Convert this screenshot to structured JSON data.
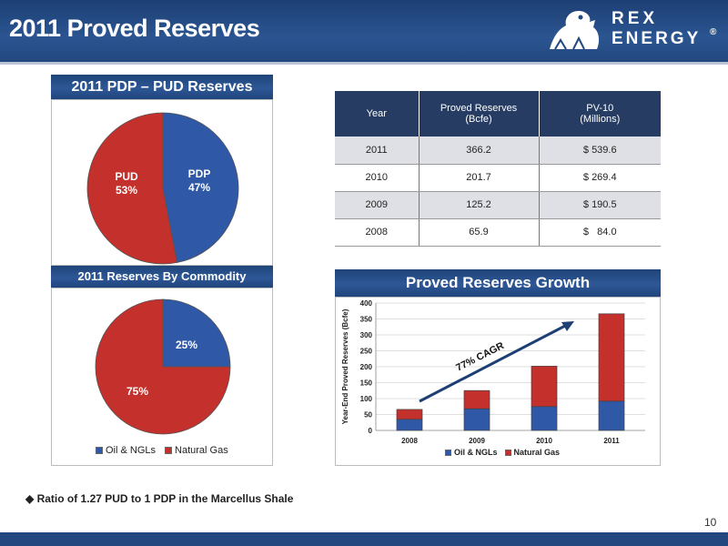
{
  "header": {
    "title": "2011 Proved Reserves"
  },
  "logo": {
    "line1": "REX",
    "line2": "ENERGY",
    "registered": "®"
  },
  "colors": {
    "blue": "#2f58a6",
    "red": "#c4302b",
    "header": "#23487f"
  },
  "pud_pdp_chart": {
    "title": "2011 PDP – PUD Reserves",
    "chart_data": {
      "type": "pie",
      "slices": [
        {
          "label": "PDP",
          "value": 47,
          "display": "47%",
          "color": "#2f58a6"
        },
        {
          "label": "PUD",
          "value": 53,
          "display": "53%",
          "color": "#c4302b"
        }
      ]
    }
  },
  "commodity_chart": {
    "title": "2011 Reserves By Commodity",
    "chart_data": {
      "type": "pie",
      "slices": [
        {
          "label": "Oil & NGLs",
          "value": 25,
          "display": "25%",
          "color": "#2f58a6"
        },
        {
          "label": "Natural Gas",
          "value": 75,
          "display": "75%",
          "color": "#c4302b"
        }
      ],
      "legend": [
        "Oil & NGLs",
        "Natural Gas"
      ]
    }
  },
  "reserves_table": {
    "headers": [
      "Year",
      "Proved Reserves",
      "(Bcfe)",
      "PV-10",
      "(Millions)"
    ],
    "rows": [
      {
        "year": "2011",
        "reserves": "366.2",
        "pv10": "$ 539.6"
      },
      {
        "year": "2010",
        "reserves": "201.7",
        "pv10": "$ 269.4"
      },
      {
        "year": "2009",
        "reserves": "125.2",
        "pv10": "$ 190.5"
      },
      {
        "year": "2008",
        "reserves": "65.9",
        "pv10": "$   84.0"
      }
    ]
  },
  "growth_chart": {
    "title": "Proved Reserves Growth",
    "annotation": "77% CAGR",
    "chart_data": {
      "type": "bar",
      "stacked": true,
      "categories": [
        "2008",
        "2009",
        "2010",
        "2011"
      ],
      "series": [
        {
          "name": "Oil & NGLs",
          "values": [
            35,
            68,
            75,
            92
          ],
          "color": "#2f58a6"
        },
        {
          "name": "Natural Gas",
          "values": [
            30.9,
            57.2,
            126.7,
            274.2
          ],
          "color": "#c4302b"
        }
      ],
      "ylabel": "Year-End Proved Reserves (Bcfe)",
      "ylim": [
        0,
        400
      ],
      "yticks": [
        "0",
        "50",
        "100",
        "150",
        "200",
        "250",
        "300",
        "350",
        "400"
      ],
      "legend": [
        "Oil & NGLs",
        "Natural Gas"
      ],
      "legend_position": "bottom"
    }
  },
  "bullet": "Ratio of 1.27 PUD to 1 PDP in the Marcellus Shale",
  "page_number": "10"
}
